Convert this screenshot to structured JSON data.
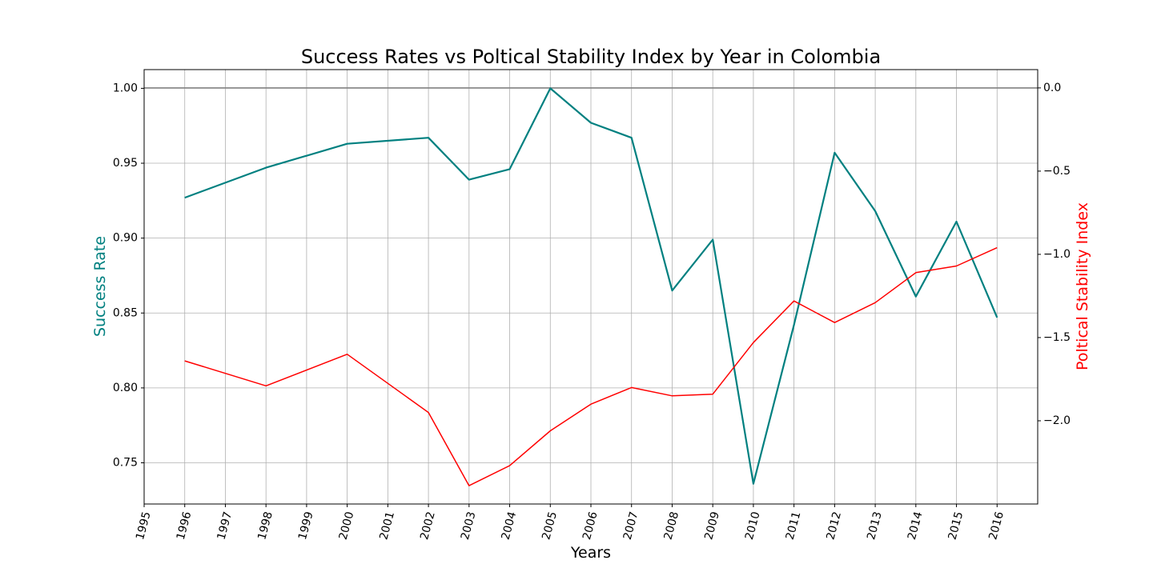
{
  "chart_data": {
    "type": "line",
    "title": "Success Rates vs Poltical Stability Index by Year in Colombia",
    "xlabel": "Years",
    "ylabel_left": "Success Rate",
    "ylabel_right": "Poltical Stability Index",
    "colors": {
      "left": "#008080",
      "right": "#ff0000",
      "grid": "#b0b0b0",
      "refline": "#808080"
    },
    "xlim": [
      1995,
      2017
    ],
    "x_ticks": [
      "1995",
      "1996",
      "1997",
      "1998",
      "1999",
      "2000",
      "2001",
      "2002",
      "2003",
      "2004",
      "2005",
      "2006",
      "2007",
      "2008",
      "2009",
      "2010",
      "2011",
      "2012",
      "2013",
      "2014",
      "2015",
      "2016"
    ],
    "ylim_left": [
      0.7225,
      1.0125
    ],
    "yticks_left": [
      "0.75",
      "0.80",
      "0.85",
      "0.90",
      "0.95",
      "1.00"
    ],
    "ylim_right": [
      -2.5,
      0.11
    ],
    "yticks_right": [
      "−2.0",
      "−1.5",
      "−1.0",
      "−0.5",
      "0.0"
    ],
    "reference_line_right": 0.0,
    "grid": true,
    "series": [
      {
        "name": "Success Rate",
        "axis": "left",
        "x": [
          1996,
          1998,
          2000,
          2002,
          2003,
          2004,
          2005,
          2006,
          2007,
          2008,
          2009,
          2010,
          2011,
          2012,
          2013,
          2014,
          2015,
          2016
        ],
        "values": [
          0.927,
          0.947,
          0.963,
          0.967,
          0.939,
          0.946,
          1.0,
          0.977,
          0.967,
          0.865,
          0.899,
          0.736,
          0.842,
          0.957,
          0.918,
          0.861,
          0.911,
          0.847
        ]
      },
      {
        "name": "Poltical Stability Index",
        "axis": "right",
        "x": [
          1996,
          1998,
          2000,
          2002,
          2003,
          2004,
          2005,
          2006,
          2007,
          2008,
          2009,
          2010,
          2011,
          2012,
          2013,
          2014,
          2015,
          2016
        ],
        "values": [
          -1.64,
          -1.79,
          -1.6,
          -1.95,
          -2.39,
          -2.27,
          -2.06,
          -1.9,
          -1.8,
          -1.85,
          -1.84,
          -1.53,
          -1.28,
          -1.41,
          -1.29,
          -1.11,
          -1.07,
          -0.96
        ]
      }
    ]
  }
}
